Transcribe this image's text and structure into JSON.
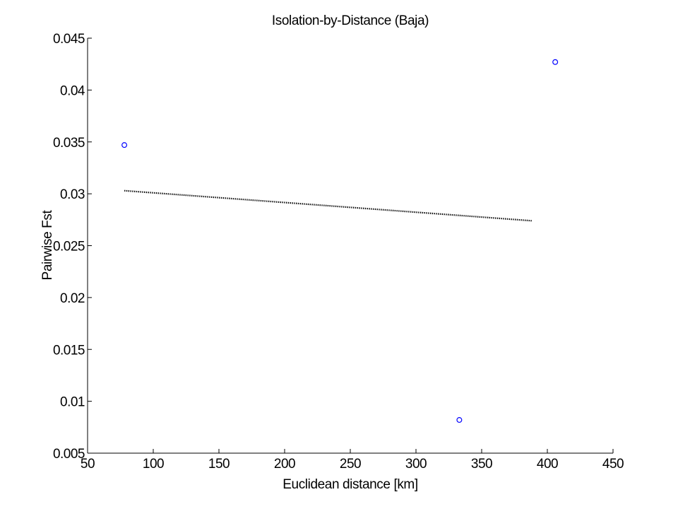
{
  "chart_data": {
    "type": "scatter",
    "title": "Isolation-by-Distance (Baja)",
    "xlabel": "Euclidean distance [km]",
    "ylabel": "Pairwise Fst",
    "xlim": [
      50,
      450
    ],
    "ylim": [
      0.005,
      0.045
    ],
    "x_ticks": [
      50,
      100,
      150,
      200,
      250,
      300,
      350,
      400,
      450
    ],
    "x_tick_labels": [
      "50",
      "100",
      "150",
      "200",
      "250",
      "300",
      "350",
      "400",
      "450"
    ],
    "y_ticks": [
      0.005,
      0.01,
      0.015,
      0.02,
      0.025,
      0.03,
      0.035,
      0.04,
      0.045
    ],
    "y_tick_labels": [
      "0.005",
      "0.01",
      "0.015",
      "0.02",
      "0.025",
      "0.03",
      "0.035",
      "0.04",
      "0.045"
    ],
    "grid": false,
    "series": [
      {
        "kind": "scatter",
        "marker": "circle-open",
        "color": "#0000ff",
        "points": [
          {
            "x": 78,
            "y": 0.0347
          },
          {
            "x": 333,
            "y": 0.0082
          },
          {
            "x": 406,
            "y": 0.0427
          }
        ]
      },
      {
        "kind": "line",
        "style": "dotted",
        "color": "#000000",
        "points": [
          {
            "x": 78,
            "y": 0.0303
          },
          {
            "x": 388,
            "y": 0.0274
          }
        ]
      }
    ]
  }
}
